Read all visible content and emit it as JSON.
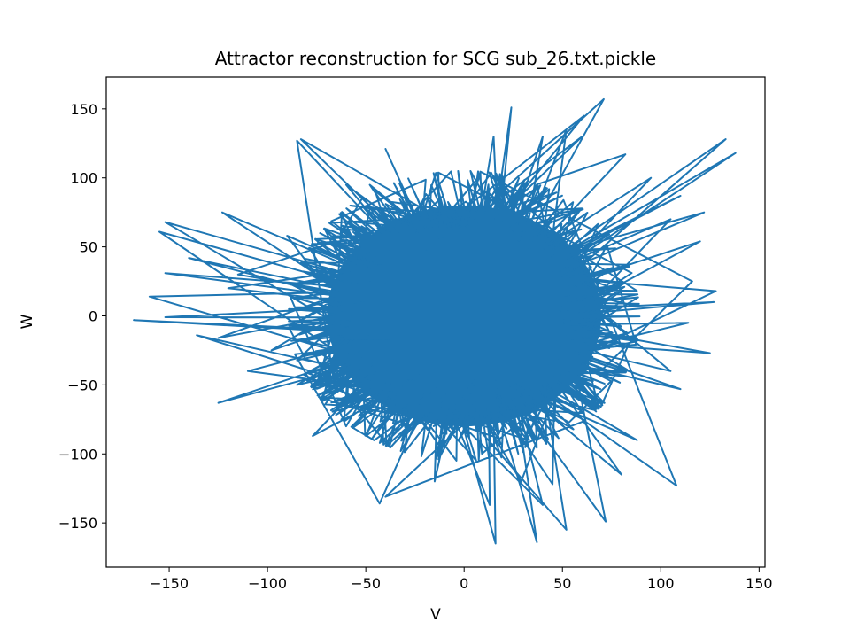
{
  "chart_data": {
    "type": "line",
    "title": "Attractor reconstruction for SCG sub_26.txt.pickle",
    "xlabel": "V",
    "ylabel": "W",
    "xlim": [
      -182,
      153
    ],
    "ylim": [
      -182,
      173
    ],
    "xticks": [
      -150,
      -100,
      -50,
      0,
      50,
      100,
      150
    ],
    "yticks": [
      -150,
      -100,
      -50,
      0,
      50,
      100,
      150
    ],
    "xtick_labels": [
      "−150",
      "−100",
      "−50",
      "0",
      "50",
      "100",
      "150"
    ],
    "ytick_labels": [
      "−150",
      "−100",
      "−50",
      "0",
      "50",
      "100",
      "150"
    ],
    "grid": false,
    "legend": "none",
    "series": [
      {
        "color": "#1f77b4",
        "description_points": "dense trajectory filling ellipse centered near (0,0), radius ~85 in V and ~100 in W, with outlying excursions",
        "core": {
          "center": [
            0,
            0
          ],
          "rx": 85,
          "ry": 100
        },
        "outliers": [
          [
            -152,
            68
          ],
          [
            -123,
            75
          ],
          [
            -60,
            95
          ],
          [
            -40,
            121
          ],
          [
            -48,
            95
          ],
          [
            -85,
            127
          ],
          [
            -83,
            128
          ],
          [
            -155,
            61
          ],
          [
            -90,
            58
          ],
          [
            -140,
            42
          ],
          [
            -115,
            30
          ],
          [
            -160,
            14
          ],
          [
            -152,
            31
          ],
          [
            -120,
            20
          ],
          [
            -168,
            -3
          ],
          [
            -136,
            -14
          ],
          [
            -152,
            -1
          ],
          [
            -125,
            -16
          ],
          [
            -98,
            -25
          ],
          [
            -110,
            -40
          ],
          [
            -125,
            -63
          ],
          [
            -85,
            -50
          ],
          [
            -77,
            -87
          ],
          [
            -60,
            -80
          ],
          [
            -43,
            -136
          ],
          [
            -40,
            -131
          ],
          [
            -15,
            -120
          ],
          [
            13,
            -137
          ],
          [
            16,
            -165
          ],
          [
            37,
            -164
          ],
          [
            29,
            -120
          ],
          [
            52,
            -155
          ],
          [
            40,
            -137
          ],
          [
            72,
            -149
          ],
          [
            45,
            -122
          ],
          [
            80,
            -115
          ],
          [
            108,
            -123
          ],
          [
            88,
            -90
          ],
          [
            105,
            -40
          ],
          [
            110,
            -53
          ],
          [
            125,
            -27
          ],
          [
            114,
            -5
          ],
          [
            128,
            18
          ],
          [
            127,
            10
          ],
          [
            116,
            25
          ],
          [
            120,
            54
          ],
          [
            105,
            70
          ],
          [
            95,
            100
          ],
          [
            138,
            118
          ],
          [
            133,
            128
          ],
          [
            122,
            75
          ],
          [
            71,
            157
          ],
          [
            61,
            145
          ],
          [
            52,
            135
          ],
          [
            40,
            130
          ],
          [
            24,
            151
          ],
          [
            15,
            130
          ],
          [
            60,
            130
          ],
          [
            82,
            117
          ],
          [
            110,
            87
          ]
        ]
      }
    ]
  }
}
